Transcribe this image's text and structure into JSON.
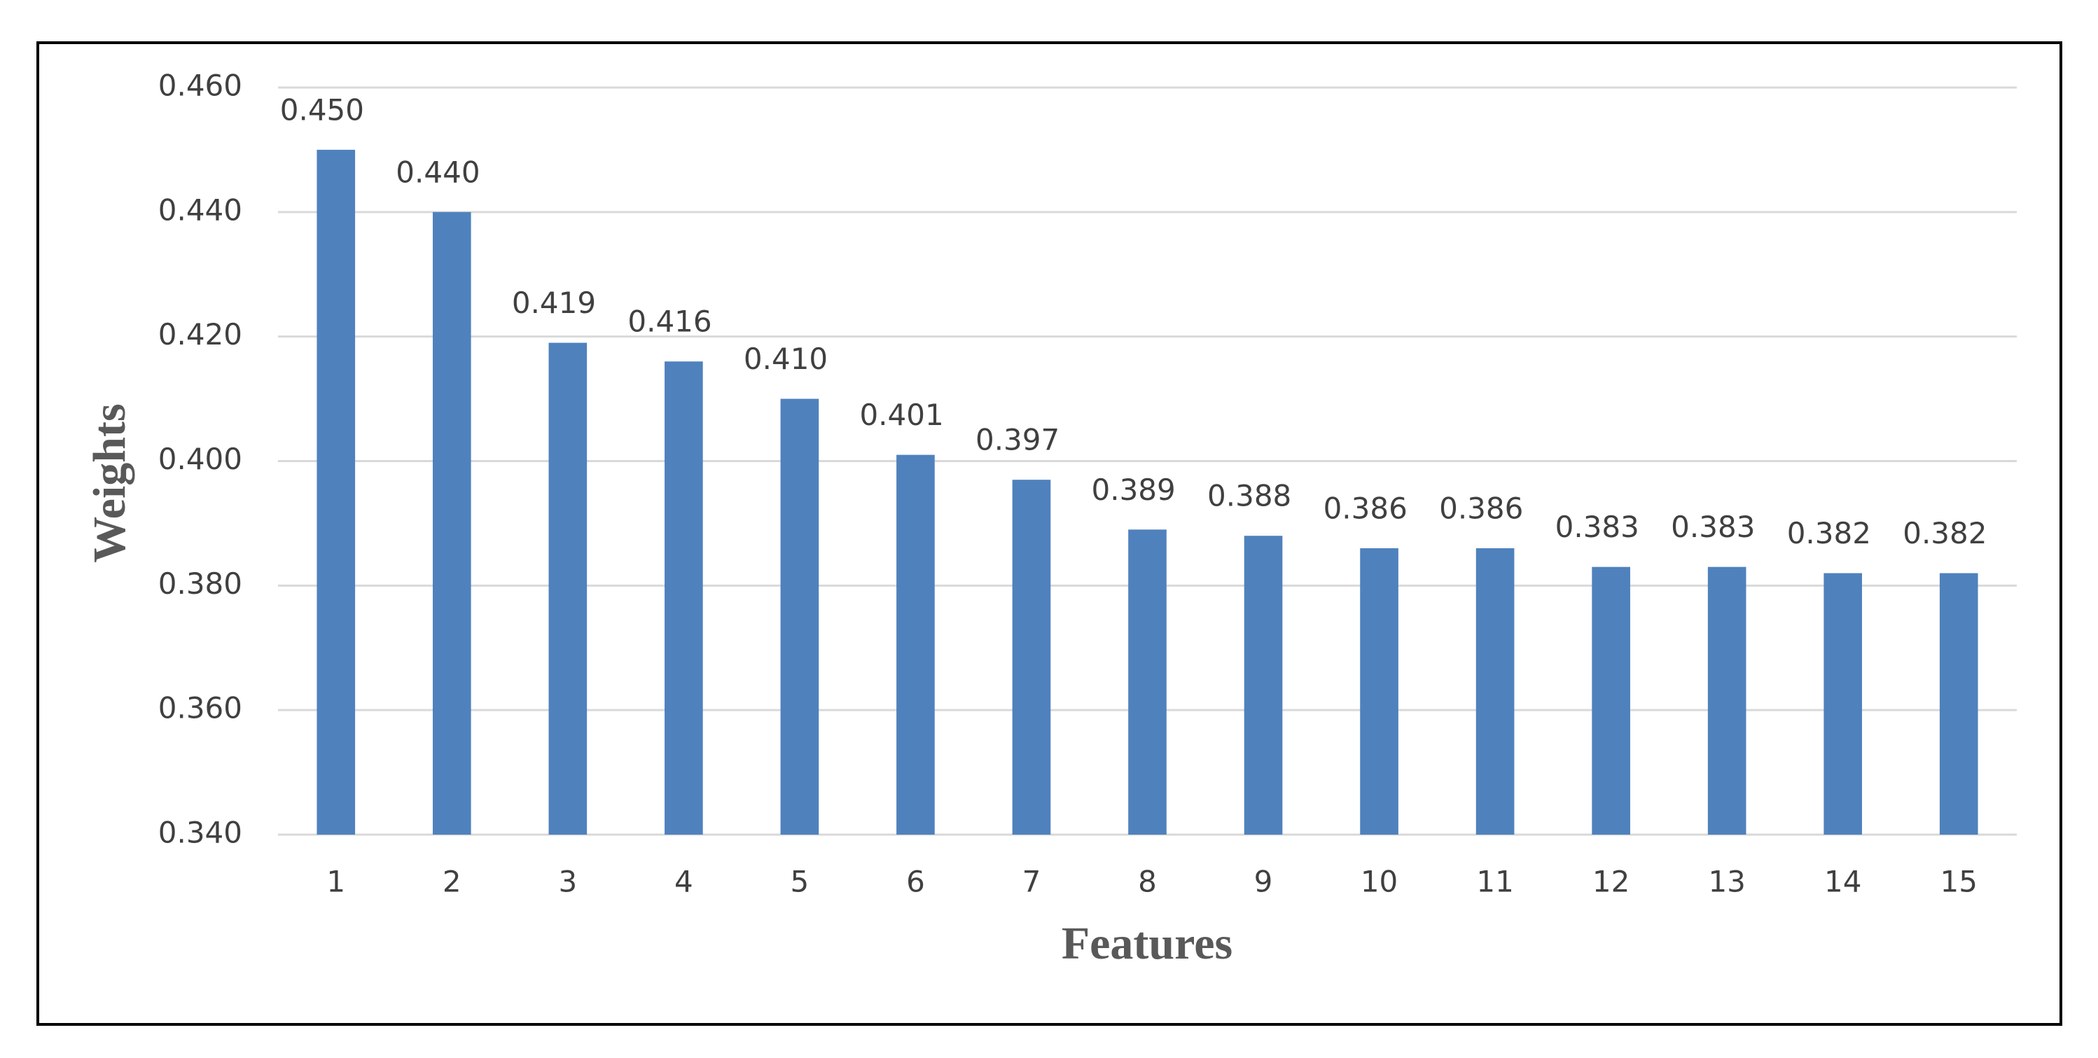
{
  "chart_data": {
    "type": "bar",
    "x_label": "Features",
    "y_label": "Weights",
    "categories": [
      "1",
      "2",
      "3",
      "4",
      "5",
      "6",
      "7",
      "8",
      "9",
      "10",
      "11",
      "12",
      "13",
      "14",
      "15"
    ],
    "values": [
      0.45,
      0.44,
      0.419,
      0.416,
      0.41,
      0.401,
      0.397,
      0.389,
      0.388,
      0.386,
      0.386,
      0.383,
      0.383,
      0.382,
      0.382
    ],
    "value_labels": [
      "0.450",
      "0.440",
      "0.419",
      "0.416",
      "0.410",
      "0.401",
      "0.397",
      "0.389",
      "0.388",
      "0.386",
      "0.386",
      "0.383",
      "0.383",
      "0.382",
      "0.382"
    ],
    "color": "#4f81bd",
    "ylim": [
      0.34,
      0.46
    ],
    "yticks": [
      {
        "value": 0.34,
        "label": "0.340"
      },
      {
        "value": 0.36,
        "label": "0.360"
      },
      {
        "value": 0.38,
        "label": "0.380"
      },
      {
        "value": 0.4,
        "label": "0.400"
      },
      {
        "value": 0.42,
        "label": "0.420"
      },
      {
        "value": 0.44,
        "label": "0.440"
      },
      {
        "value": 0.46,
        "label": "0.460"
      }
    ],
    "grid": true
  }
}
